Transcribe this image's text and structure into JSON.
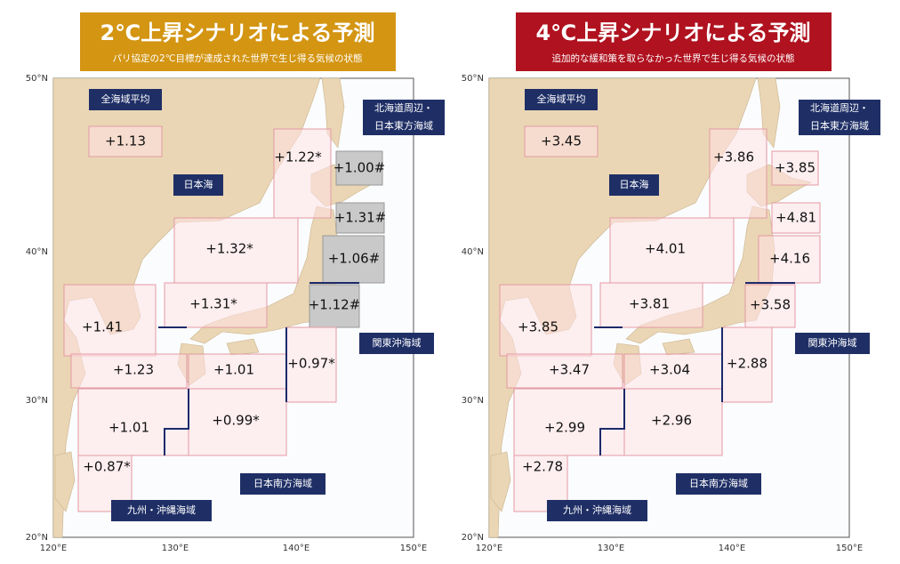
{
  "panels": [
    {
      "title": "2℃上昇シナリオによる予測",
      "subtitle": "パリ協定の2℃目標が達成された世界で生じ得る気候の状態",
      "header_color": "#d39512",
      "lat_labels": [
        "50°N",
        "40°N",
        "30°N",
        "20°N"
      ],
      "lon_labels": [
        "120°E",
        "130°E",
        "140°E",
        "150°E"
      ],
      "area_labels": [
        [
          "全海域平均"
        ],
        [
          "日本海"
        ],
        [
          "北海道周辺・",
          "日本東方海域"
        ],
        [
          "関東沖海域"
        ],
        [
          "日本南方海域"
        ],
        [
          "九州・沖縄海域"
        ]
      ],
      "regions": [
        "+1.13",
        "+1.22*",
        "+1.00#",
        "+1.31#",
        "+1.06#",
        "+1.12#",
        "+1.32*",
        "+1.31*",
        "+1.41",
        "+1.23",
        "+1.01",
        "+0.97*",
        "+1.01",
        "+0.99*",
        "+0.87*"
      ]
    },
    {
      "title": "4℃上昇シナリオによる予測",
      "subtitle": "追加的な緩和策を取らなかった世界で生じ得る気候の状態",
      "header_color": "#b0121f",
      "lat_labels": [
        "50°N",
        "40°N",
        "30°N",
        "20°N"
      ],
      "lon_labels": [
        "120°E",
        "130°E",
        "140°E",
        "150°E"
      ],
      "area_labels": [
        [
          "全海域平均"
        ],
        [
          "日本海"
        ],
        [
          "北海道周辺・",
          "日本東方海域"
        ],
        [
          "関東沖海域"
        ],
        [
          "日本南方海域"
        ],
        [
          "九州・沖縄海域"
        ]
      ],
      "regions": [
        "+3.45",
        "+3.86",
        "+3.85",
        "+4.81",
        "+4.16",
        "+3.58",
        "+4.01",
        "+3.81",
        "+3.85",
        "+3.47",
        "+3.04",
        "+2.88",
        "+2.99",
        "+2.96",
        "+2.78"
      ]
    }
  ]
}
